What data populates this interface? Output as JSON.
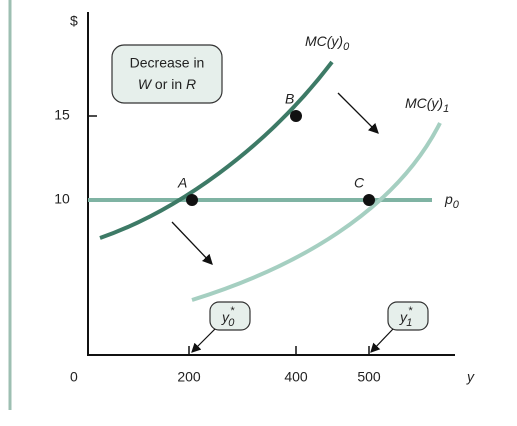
{
  "axes": {
    "y_label": "$",
    "x_label": "y",
    "origin": "0",
    "y_ticks": [
      "15",
      "10"
    ],
    "x_ticks": [
      "200",
      "400",
      "500"
    ]
  },
  "curves": {
    "mc0": {
      "base": "MC(y)",
      "sub": "0"
    },
    "mc1": {
      "base": "MC(y)",
      "sub": "1"
    },
    "price": {
      "base": "p",
      "sub": "0"
    }
  },
  "points": [
    "A",
    "B",
    "C"
  ],
  "annotation": {
    "line1": "Decrease in",
    "w": "W",
    "middle": " or in ",
    "r": "R"
  },
  "callouts": [
    {
      "base": "y",
      "sup": "*",
      "sub": "0"
    },
    {
      "base": "y",
      "sup": "*",
      "sub": "1"
    }
  ]
}
